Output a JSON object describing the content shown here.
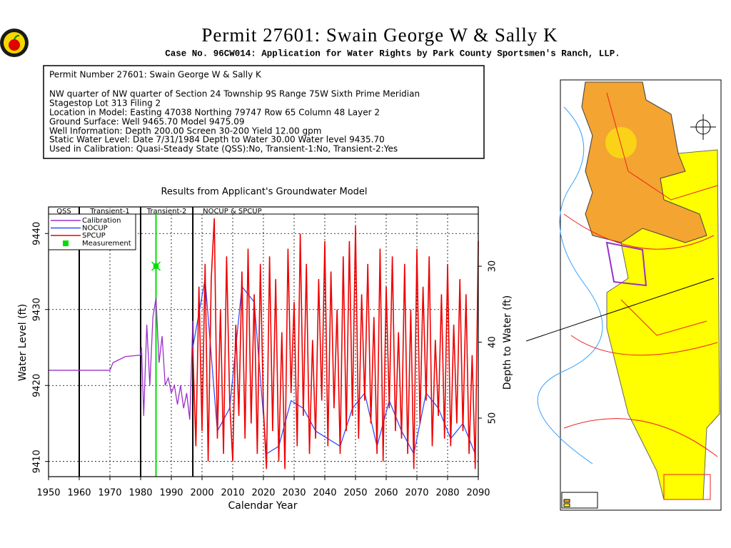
{
  "header": {
    "title": "Permit 27601:  Swain George W & Sally K",
    "subtitle": "Case No. 96CW014: Application for Water Rights by Park County Sportsmen's Ranch, LLP."
  },
  "info": {
    "lines": [
      "Permit Number 27601: Swain George W & Sally K",
      "NW quarter of NW quarter of Section 24 Township 9S Range 75W Sixth Prime Meridian",
      "Stagestop Lot 313 Filing 2",
      "Location in Model: Easting 47038 Northing  79747 Row   65 Column 48 Layer 2",
      "Ground Surface: Well   9465.70 Model  9475.09",
      "Well Information: Depth    200.00 Screen 30-200 Yield      12.00 gpm",
      "Static Water Level: Date   7/31/1984 Depth to Water     30.00 Water level   9435.70",
      "Used in Calibration: Quasi-Steady State (QSS):No, Transient-1:No, Transient-2:Yes"
    ]
  },
  "chart_data": {
    "type": "line",
    "title": "Results from Applicant's Groundwater Model",
    "x_label": "Calendar Year",
    "y_label": "Water Level (ft)",
    "y2_label": "Depth to Water (ft)",
    "xlim": [
      1950,
      2090
    ],
    "xticks": [
      1950,
      1960,
      1970,
      1980,
      1990,
      2000,
      2010,
      2020,
      2030,
      2040,
      2050,
      2060,
      2070,
      2080,
      2090
    ],
    "ylim": [
      9408,
      9443.5
    ],
    "yticks": [
      9410,
      9420,
      9430,
      9440
    ],
    "y2lim": [
      57.7,
      22.2
    ],
    "y2ticks": [
      30,
      40,
      50
    ],
    "grid": true,
    "periods": [
      {
        "label": "QSS",
        "start": 1950,
        "end": 1960
      },
      {
        "label": "Transient-1",
        "start": 1960,
        "end": 1980
      },
      {
        "label": "Transient-2",
        "start": 1980,
        "end": 1997
      },
      {
        "label": "NOCUP & SPCUP",
        "start": 1997,
        "end": 2090
      }
    ],
    "series": [
      {
        "name": "Calibration",
        "color": "#9b30c8",
        "x": [
          1950,
          1970,
          1971,
          1975,
          1980,
          1980.3,
          1981,
          1982,
          1983,
          1984,
          1985,
          1986,
          1987,
          1988,
          1989,
          1990,
          1991,
          1992,
          1993,
          1994,
          1995,
          1996,
          1997
        ],
        "values": [
          9422,
          9422,
          9423,
          9423.8,
          9424,
          9425,
          9416,
          9428,
          9420,
          9429,
          9431.5,
          9423,
          9426.5,
          9420,
          9421,
          9419,
          9420,
          9417.5,
          9420,
          9417,
          9419,
          9415.5,
          9428.5
        ]
      },
      {
        "name": "NOCUP",
        "color": "#3050ff",
        "x": [
          1997,
          2001,
          2005,
          2009,
          2013,
          2017,
          2021,
          2025,
          2029,
          2033,
          2037,
          2041,
          2045,
          2049,
          2053,
          2057,
          2061,
          2065,
          2069,
          2073,
          2077,
          2081,
          2085,
          2089
        ],
        "values": [
          9425,
          9434,
          9414,
          9417,
          9433,
          9431,
          9411,
          9412,
          9418,
          9417,
          9414,
          9413,
          9412,
          9417,
          9419,
          9412,
          9418,
          9414,
          9411,
          9419,
          9417,
          9413,
          9415,
          9411
        ]
      },
      {
        "name": "SPCUP",
        "color": "#ee0000",
        "x": [
          1997,
          1998,
          1999,
          2000,
          2001,
          2002,
          2003,
          2004,
          2005,
          2006,
          2007,
          2008,
          2009,
          2010,
          2011,
          2012,
          2013,
          2014,
          2015,
          2016,
          2017,
          2018,
          2019,
          2020,
          2021,
          2022,
          2023,
          2024,
          2025,
          2026,
          2027,
          2028,
          2029,
          2030,
          2031,
          2032,
          2033,
          2034,
          2035,
          2036,
          2037,
          2038,
          2039,
          2040,
          2041,
          2042,
          2043,
          2044,
          2045,
          2046,
          2047,
          2048,
          2049,
          2050,
          2051,
          2052,
          2053,
          2054,
          2055,
          2056,
          2057,
          2058,
          2059,
          2060,
          2061,
          2062,
          2063,
          2064,
          2065,
          2066,
          2067,
          2068,
          2069,
          2070,
          2071,
          2072,
          2073,
          2074,
          2075,
          2076,
          2077,
          2078,
          2079,
          2080,
          2081,
          2082,
          2083,
          2084,
          2085,
          2086,
          2087,
          2088,
          2089,
          2090
        ],
        "values": [
          9425,
          9412,
          9433,
          9414,
          9436,
          9410,
          9434,
          9442,
          9413,
          9430,
          9411,
          9437,
          9418,
          9410,
          9428,
          9416,
          9435,
          9413,
          9438,
          9415,
          9432,
          9411,
          9436,
          9417,
          9409,
          9437,
          9414,
          9434,
          9410,
          9427,
          9409,
          9438,
          9419,
          9431,
          9412,
          9440,
          9416,
          9436,
          9411,
          9426,
          9413,
          9434,
          9418,
          9439,
          9412,
          9435,
          9417,
          9430,
          9411,
          9437,
          9414,
          9439,
          9416,
          9441,
          9413,
          9432,
          9418,
          9436,
          9415,
          9429,
          9411,
          9438,
          9410,
          9433,
          9417,
          9437,
          9414,
          9427,
          9413,
          9436,
          9411,
          9430,
          9409,
          9438,
          9415,
          9433,
          9418,
          9437,
          9412,
          9426,
          9416,
          9432,
          9413,
          9436,
          9412,
          9428,
          9415,
          9434,
          9414,
          9432,
          9411,
          9424,
          9409,
          9439
        ]
      }
    ],
    "measurement": {
      "name": "Measurement",
      "x": 1985,
      "value": 9435.7,
      "color": "#00dd00"
    }
  }
}
